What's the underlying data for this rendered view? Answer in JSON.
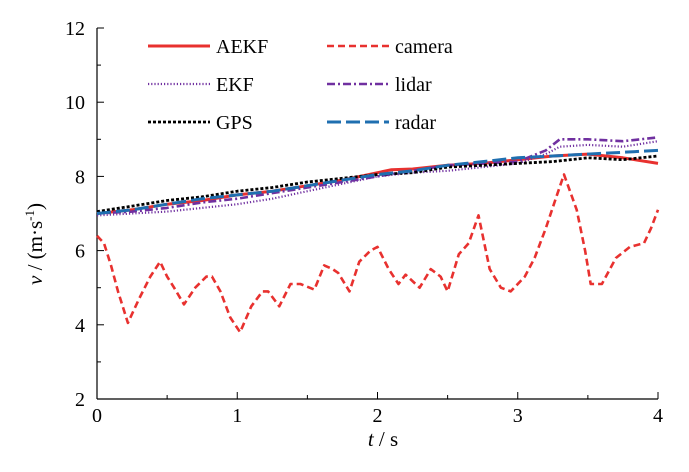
{
  "chart_data": {
    "type": "line",
    "xlabel": {
      "var": "t",
      "unit": " / s"
    },
    "ylabel": {
      "var": "v",
      "unit_pre": " / (m·s",
      "unit_sup": "-1",
      "unit_post": ")"
    },
    "xlim": [
      0,
      4
    ],
    "ylim": [
      2,
      12
    ],
    "xticks": [
      "0",
      "1",
      "2",
      "3",
      "4"
    ],
    "yticks": [
      "2",
      "4",
      "6",
      "8",
      "10",
      "12"
    ],
    "grid": false,
    "legend_position": "top",
    "series": [
      {
        "name": "AEKF",
        "color": "#e8312f",
        "style": "solid",
        "points": [
          [
            0,
            7.0
          ],
          [
            0.25,
            7.1
          ],
          [
            0.5,
            7.25
          ],
          [
            0.75,
            7.35
          ],
          [
            1.0,
            7.5
          ],
          [
            1.25,
            7.6
          ],
          [
            1.5,
            7.75
          ],
          [
            1.75,
            7.9
          ],
          [
            2.0,
            8.1
          ],
          [
            2.1,
            8.18
          ],
          [
            2.25,
            8.2
          ],
          [
            2.5,
            8.3
          ],
          [
            2.75,
            8.35
          ],
          [
            3.0,
            8.45
          ],
          [
            3.25,
            8.55
          ],
          [
            3.5,
            8.6
          ],
          [
            3.75,
            8.5
          ],
          [
            4.0,
            8.35
          ]
        ]
      },
      {
        "name": "camera",
        "color": "#e8312f",
        "style": "dashed",
        "points": [
          [
            0,
            6.4
          ],
          [
            0.05,
            6.2
          ],
          [
            0.1,
            5.6
          ],
          [
            0.15,
            4.9
          ],
          [
            0.22,
            4.05
          ],
          [
            0.3,
            4.7
          ],
          [
            0.38,
            5.3
          ],
          [
            0.45,
            5.7
          ],
          [
            0.5,
            5.3
          ],
          [
            0.55,
            5.0
          ],
          [
            0.62,
            4.55
          ],
          [
            0.7,
            5.0
          ],
          [
            0.78,
            5.3
          ],
          [
            0.82,
            5.3
          ],
          [
            0.88,
            4.9
          ],
          [
            0.95,
            4.2
          ],
          [
            1.02,
            3.8
          ],
          [
            1.1,
            4.5
          ],
          [
            1.18,
            4.9
          ],
          [
            1.22,
            4.9
          ],
          [
            1.3,
            4.5
          ],
          [
            1.38,
            5.1
          ],
          [
            1.45,
            5.1
          ],
          [
            1.55,
            4.95
          ],
          [
            1.62,
            5.6
          ],
          [
            1.68,
            5.5
          ],
          [
            1.72,
            5.4
          ],
          [
            1.8,
            4.9
          ],
          [
            1.87,
            5.7
          ],
          [
            1.95,
            6.0
          ],
          [
            2.0,
            6.1
          ],
          [
            2.08,
            5.5
          ],
          [
            2.15,
            5.1
          ],
          [
            2.2,
            5.35
          ],
          [
            2.3,
            5.0
          ],
          [
            2.38,
            5.5
          ],
          [
            2.45,
            5.3
          ],
          [
            2.5,
            4.9
          ],
          [
            2.58,
            5.9
          ],
          [
            2.65,
            6.2
          ],
          [
            2.72,
            6.95
          ],
          [
            2.8,
            5.5
          ],
          [
            2.88,
            5.0
          ],
          [
            2.95,
            4.9
          ],
          [
            3.05,
            5.3
          ],
          [
            3.12,
            5.8
          ],
          [
            3.2,
            6.6
          ],
          [
            3.28,
            7.5
          ],
          [
            3.33,
            8.05
          ],
          [
            3.42,
            7.1
          ],
          [
            3.48,
            6.0
          ],
          [
            3.52,
            5.1
          ],
          [
            3.6,
            5.1
          ],
          [
            3.7,
            5.8
          ],
          [
            3.8,
            6.1
          ],
          [
            3.9,
            6.2
          ],
          [
            3.95,
            6.6
          ],
          [
            4.0,
            7.1
          ]
        ]
      },
      {
        "name": "EKF",
        "color": "#7030a0",
        "style": "dotted",
        "points": [
          [
            0,
            6.95
          ],
          [
            0.25,
            7.0
          ],
          [
            0.5,
            7.05
          ],
          [
            0.75,
            7.15
          ],
          [
            1.0,
            7.25
          ],
          [
            1.25,
            7.4
          ],
          [
            1.5,
            7.6
          ],
          [
            1.75,
            7.8
          ],
          [
            2.0,
            8.0
          ],
          [
            2.25,
            8.1
          ],
          [
            2.5,
            8.15
          ],
          [
            2.75,
            8.25
          ],
          [
            3.0,
            8.35
          ],
          [
            3.2,
            8.6
          ],
          [
            3.3,
            8.8
          ],
          [
            3.5,
            8.85
          ],
          [
            3.75,
            8.8
          ],
          [
            4.0,
            8.95
          ]
        ]
      },
      {
        "name": "lidar",
        "color": "#7030a0",
        "style": "dashdot",
        "points": [
          [
            0,
            7.0
          ],
          [
            0.25,
            7.05
          ],
          [
            0.5,
            7.15
          ],
          [
            0.75,
            7.3
          ],
          [
            1.0,
            7.4
          ],
          [
            1.25,
            7.55
          ],
          [
            1.5,
            7.7
          ],
          [
            1.75,
            7.85
          ],
          [
            2.0,
            8.0
          ],
          [
            2.25,
            8.15
          ],
          [
            2.5,
            8.3
          ],
          [
            2.75,
            8.35
          ],
          [
            3.0,
            8.4
          ],
          [
            3.2,
            8.7
          ],
          [
            3.3,
            9.0
          ],
          [
            3.5,
            9.0
          ],
          [
            3.75,
            8.95
          ],
          [
            4.0,
            9.05
          ]
        ]
      },
      {
        "name": "GPS",
        "color": "#000000",
        "style": "shortdash",
        "points": [
          [
            0,
            7.05
          ],
          [
            0.25,
            7.2
          ],
          [
            0.5,
            7.35
          ],
          [
            0.75,
            7.45
          ],
          [
            1.0,
            7.6
          ],
          [
            1.25,
            7.7
          ],
          [
            1.5,
            7.85
          ],
          [
            1.75,
            7.95
          ],
          [
            2.0,
            8.05
          ],
          [
            2.25,
            8.1
          ],
          [
            2.5,
            8.25
          ],
          [
            2.75,
            8.3
          ],
          [
            3.0,
            8.35
          ],
          [
            3.25,
            8.4
          ],
          [
            3.5,
            8.5
          ],
          [
            3.75,
            8.45
          ],
          [
            4.0,
            8.55
          ]
        ]
      },
      {
        "name": "radar",
        "color": "#1f6fb0",
        "style": "longdash",
        "points": [
          [
            0,
            7.0
          ],
          [
            0.25,
            7.1
          ],
          [
            0.5,
            7.25
          ],
          [
            0.75,
            7.4
          ],
          [
            1.0,
            7.5
          ],
          [
            1.25,
            7.6
          ],
          [
            1.5,
            7.75
          ],
          [
            1.75,
            7.9
          ],
          [
            2.0,
            8.05
          ],
          [
            2.25,
            8.15
          ],
          [
            2.5,
            8.3
          ],
          [
            2.75,
            8.4
          ],
          [
            3.0,
            8.5
          ],
          [
            3.25,
            8.55
          ],
          [
            3.5,
            8.6
          ],
          [
            3.75,
            8.65
          ],
          [
            4.0,
            8.7
          ]
        ]
      }
    ]
  }
}
